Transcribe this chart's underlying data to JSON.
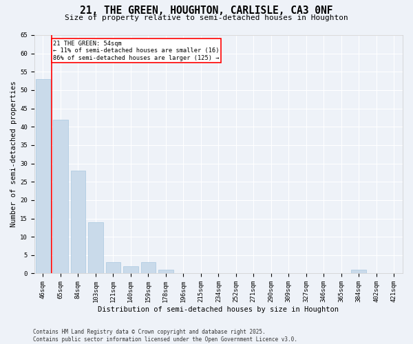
{
  "title": "21, THE GREEN, HOUGHTON, CARLISLE, CA3 0NF",
  "subtitle": "Size of property relative to semi-detached houses in Houghton",
  "xlabel": "Distribution of semi-detached houses by size in Houghton",
  "ylabel": "Number of semi-detached properties",
  "categories": [
    "46sqm",
    "65sqm",
    "84sqm",
    "103sqm",
    "121sqm",
    "140sqm",
    "159sqm",
    "178sqm",
    "196sqm",
    "215sqm",
    "234sqm",
    "252sqm",
    "271sqm",
    "290sqm",
    "309sqm",
    "327sqm",
    "346sqm",
    "365sqm",
    "384sqm",
    "402sqm",
    "421sqm"
  ],
  "values": [
    53,
    42,
    28,
    14,
    3,
    2,
    3,
    1,
    0,
    0,
    0,
    0,
    0,
    0,
    0,
    0,
    0,
    0,
    1,
    0,
    0
  ],
  "bar_color": "#c9daea",
  "bar_edge_color": "#a8c8e0",
  "annotation_text": "21 THE GREEN: 54sqm\n← 11% of semi-detached houses are smaller (16)\n86% of semi-detached houses are larger (125) →",
  "annotation_box_color": "white",
  "annotation_box_edge_color": "red",
  "red_line_x": 0.5,
  "ylim": [
    0,
    65
  ],
  "yticks": [
    0,
    5,
    10,
    15,
    20,
    25,
    30,
    35,
    40,
    45,
    50,
    55,
    60,
    65
  ],
  "background_color": "#eef2f8",
  "grid_color": "white",
  "title_fontsize": 10.5,
  "subtitle_fontsize": 8,
  "tick_fontsize": 6.5,
  "ylabel_fontsize": 7.5,
  "xlabel_fontsize": 7.5,
  "footer": "Contains HM Land Registry data © Crown copyright and database right 2025.\nContains public sector information licensed under the Open Government Licence v3.0."
}
